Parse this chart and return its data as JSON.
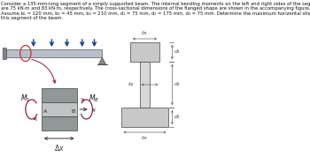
{
  "text_block_line1": "Consider a 135-mm-long segment of a simply supported beam. The internal bending moments on the left and right sides of the segment",
  "text_block_line2": "are 75 kN·m and 83 kN·m, respectively. The cross-sectional dimensions of the flanged shape are shown in the accompanying figure.",
  "text_block_line3": "Assume b₁ = 120 mm, b₂ = 45 mm, b₃ = 210 mm, d₁ = 75 mm, d₂ = 175 mm, d₃ = 75 mm. Determine the maximum horizontal shear stress in",
  "text_block_line4": "this segment of the beam.",
  "bg_color": "#ffffff",
  "beam_color": "#b8bfc8",
  "beam_edge": "#555566",
  "flange_fill": "#c8c8c8",
  "web_fill": "#d8d8d8",
  "support_color": "#888888",
  "arrow_color": "#1a3a8a",
  "moment_color": "#882244",
  "text_color": "#111111",
  "dim_color": "#444444",
  "seg_top_fill": "#909898",
  "seg_mid_fill": "#c0c4c4",
  "seg_bot_fill": "#909898"
}
